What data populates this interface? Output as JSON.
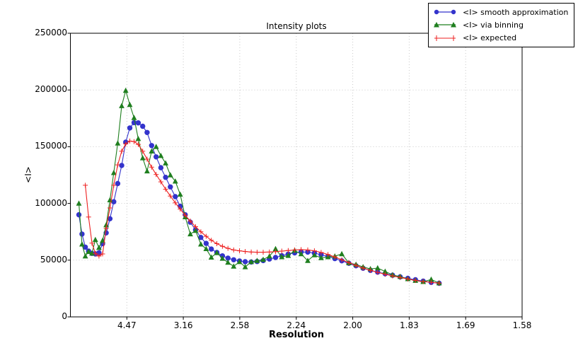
{
  "title": "Intensity plots",
  "axes": {
    "x": {
      "label": "Resolution",
      "tick_labels": [
        "4.47",
        "3.16",
        "2.58",
        "2.24",
        "2.00",
        "1.83",
        "1.69",
        "1.58"
      ],
      "tick_positions": [
        0.05,
        0.1,
        0.15,
        0.2,
        0.25,
        0.3,
        0.35,
        0.4
      ],
      "scale_note": "ticks equally spaced in 1/d^2"
    },
    "y": {
      "label": "<I>",
      "tick_labels": [
        "0",
        "50000",
        "100000",
        "150000",
        "200000",
        "250000"
      ],
      "tick_values": [
        0,
        50000,
        100000,
        150000,
        200000,
        250000
      ]
    }
  },
  "legend": {
    "position": "top-right",
    "items": [
      {
        "label": "<I> smooth approximation",
        "color": "#3333cc",
        "marker": "circle"
      },
      {
        "label": "<I> via binning",
        "color": "#1f7f1f",
        "marker": "triangle"
      },
      {
        "label": "<I> expected",
        "color": "#ee2222",
        "marker": "plus"
      }
    ]
  },
  "chart_data": {
    "type": "line",
    "title": "Intensity plots",
    "xlabel": "Resolution",
    "ylabel": "<I>",
    "xlim": [
      0,
      0.4
    ],
    "ylim": [
      0,
      250000
    ],
    "grid": "dotted",
    "legend_position": "top-right",
    "x_units": "1/d^2 (A^-2)",
    "series": [
      {
        "name": "<I> smooth approximation",
        "color": "#3333cc",
        "marker": "circle",
        "x": [
          0.0075,
          0.0103,
          0.0132,
          0.0161,
          0.0191,
          0.0221,
          0.0253,
          0.0285,
          0.0317,
          0.035,
          0.0384,
          0.0419,
          0.0454,
          0.049,
          0.0526,
          0.0564,
          0.0601,
          0.064,
          0.0679,
          0.0719,
          0.0759,
          0.0801,
          0.0843,
          0.0885,
          0.0929,
          0.0972,
          0.1017,
          0.1062,
          0.1108,
          0.1155,
          0.1202,
          0.1248,
          0.1297,
          0.1346,
          0.1395,
          0.1446,
          0.1497,
          0.1548,
          0.1601,
          0.1653,
          0.1707,
          0.1762,
          0.1817,
          0.1872,
          0.1929,
          0.1986,
          0.2043,
          0.2102,
          0.2161,
          0.222,
          0.2281,
          0.2342,
          0.2403,
          0.2466,
          0.2529,
          0.2592,
          0.2657,
          0.2721,
          0.2787,
          0.2853,
          0.292,
          0.2988,
          0.3055,
          0.3124,
          0.3195,
          0.3265
        ],
        "y": [
          90000,
          73000,
          61500,
          58000,
          56000,
          55500,
          56500,
          64500,
          74000,
          86500,
          101500,
          117500,
          133500,
          154000,
          166500,
          171200,
          171000,
          168000,
          162500,
          151000,
          141000,
          131500,
          123000,
          114500,
          106000,
          97500,
          90000,
          83500,
          76700,
          70000,
          64800,
          59800,
          56800,
          53800,
          51800,
          50300,
          49300,
          48600,
          48400,
          48800,
          49600,
          51000,
          52400,
          53900,
          55300,
          56400,
          57200,
          57100,
          56200,
          54800,
          53200,
          51400,
          49400,
          47200,
          45000,
          42800,
          41000,
          39400,
          38000,
          36700,
          35300,
          34000,
          32700,
          31500,
          30400,
          29600
        ]
      },
      {
        "name": "<I> via binning",
        "color": "#1f7f1f",
        "marker": "triangle",
        "x": [
          0.0075,
          0.0103,
          0.0132,
          0.0161,
          0.0191,
          0.0221,
          0.0253,
          0.0285,
          0.0317,
          0.035,
          0.0384,
          0.0419,
          0.0454,
          0.049,
          0.0526,
          0.0564,
          0.0601,
          0.064,
          0.0679,
          0.0719,
          0.0759,
          0.0801,
          0.0843,
          0.0885,
          0.0929,
          0.0972,
          0.1017,
          0.1062,
          0.1108,
          0.1155,
          0.1202,
          0.1248,
          0.1297,
          0.1346,
          0.1395,
          0.1446,
          0.1497,
          0.1548,
          0.1601,
          0.1653,
          0.1707,
          0.1762,
          0.1817,
          0.1872,
          0.1929,
          0.1986,
          0.2043,
          0.2102,
          0.2161,
          0.222,
          0.2281,
          0.2342,
          0.2403,
          0.2466,
          0.2529,
          0.2592,
          0.2657,
          0.2721,
          0.2787,
          0.2853,
          0.292,
          0.2988,
          0.3055,
          0.3124,
          0.3195,
          0.3265
        ],
        "y": [
          100000,
          64000,
          53500,
          57500,
          56000,
          68000,
          61000,
          67300,
          81000,
          103000,
          127000,
          153000,
          186000,
          199500,
          187000,
          175500,
          157000,
          140000,
          128500,
          146000,
          150000,
          142000,
          135500,
          125000,
          119500,
          108000,
          88000,
          73000,
          76000,
          64000,
          60000,
          52500,
          56500,
          51500,
          48000,
          44500,
          48500,
          44000,
          48500,
          49500,
          50500,
          53500,
          60000,
          52800,
          54000,
          58500,
          55500,
          49500,
          54500,
          52000,
          52800,
          53500,
          55500,
          47500,
          46200,
          44000,
          42300,
          43000,
          40000,
          37000,
          35500,
          33500,
          32000,
          31000,
          33000,
          29800
        ]
      },
      {
        "name": "<I> expected",
        "color": "#ee2222",
        "marker": "plus",
        "x": [
          0.0132,
          0.0161,
          0.0191,
          0.0221,
          0.0253,
          0.0285,
          0.0317,
          0.035,
          0.0384,
          0.0419,
          0.0454,
          0.049,
          0.0526,
          0.0564,
          0.0601,
          0.064,
          0.0679,
          0.0719,
          0.0759,
          0.0801,
          0.0843,
          0.0885,
          0.0929,
          0.0972,
          0.1017,
          0.1062,
          0.1108,
          0.1155,
          0.1202,
          0.1248,
          0.1297,
          0.1346,
          0.1395,
          0.1446,
          0.1497,
          0.1548,
          0.1601,
          0.1653,
          0.1707,
          0.1762,
          0.1817,
          0.1872,
          0.1929,
          0.1986,
          0.2043,
          0.2102,
          0.2161,
          0.222,
          0.2281,
          0.2342,
          0.2403,
          0.2466,
          0.2529,
          0.2592,
          0.2657,
          0.2721,
          0.2787,
          0.2853,
          0.292,
          0.2988,
          0.3055,
          0.3124,
          0.3195,
          0.3265
        ],
        "y": [
          116000,
          88000,
          65000,
          56000,
          53600,
          55500,
          78000,
          96000,
          116000,
          134000,
          146000,
          152500,
          155000,
          154500,
          152000,
          146000,
          139000,
          132000,
          125500,
          119000,
          112500,
          106500,
          100500,
          95000,
          89500,
          84500,
          79500,
          75000,
          71000,
          67500,
          64500,
          62200,
          60400,
          59000,
          58200,
          57600,
          57200,
          57000,
          57000,
          57200,
          57500,
          58000,
          58500,
          59000,
          59300,
          59000,
          58200,
          56800,
          55000,
          52800,
          50300,
          47800,
          45300,
          43000,
          41000,
          39200,
          37600,
          36100,
          34700,
          33400,
          32200,
          31200,
          30400,
          29800
        ]
      }
    ]
  }
}
